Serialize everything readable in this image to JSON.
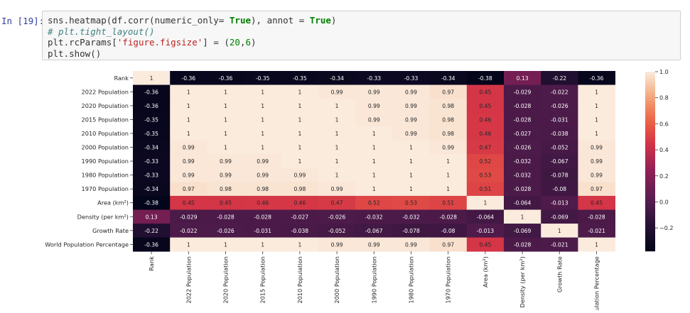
{
  "cell": {
    "prompt": "In [19]:",
    "code": [
      [
        [
          "sns.heatmap(df.corr(numeric_only",
          ""
        ],
        [
          "= ",
          ""
        ],
        [
          "True",
          "kw"
        ],
        [
          "), annot = ",
          ""
        ],
        [
          "True",
          "kw"
        ],
        [
          ")",
          ""
        ]
      ],
      [
        [
          "# plt.tight_layout()",
          "cm"
        ]
      ],
      [
        [
          "plt.rcParams[",
          ""
        ],
        [
          "'figure.figsize'",
          "str"
        ],
        [
          "] = (",
          ""
        ],
        [
          "20",
          "num"
        ],
        [
          ",",
          ""
        ],
        [
          "6",
          "num"
        ],
        [
          ")",
          ""
        ]
      ],
      [
        [
          "plt.show()",
          ""
        ]
      ]
    ]
  },
  "chart_data": {
    "type": "heatmap",
    "title": "",
    "row_labels": [
      "Rank",
      "2022 Population",
      "2020 Population",
      "2015 Population",
      "2010 Population",
      "2000 Population",
      "1990 Population",
      "1980 Population",
      "1970 Population",
      "Area (km²)",
      "Density (per km²)",
      "Growth Rate",
      "World Population Percentage"
    ],
    "col_labels": [
      "Rank",
      "2022 Population",
      "2020 Population",
      "2015 Population",
      "2010 Population",
      "2000 Population",
      "1990 Population",
      "1980 Population",
      "1970 Population",
      "Area (km²)",
      "Density (per km²)",
      "Growth Rate",
      "pulation Percentage"
    ],
    "values": [
      [
        1,
        -0.36,
        -0.36,
        -0.35,
        -0.35,
        -0.34,
        -0.33,
        -0.33,
        -0.34,
        -0.38,
        0.13,
        -0.22,
        -0.36
      ],
      [
        -0.36,
        1,
        1,
        1,
        1,
        0.99,
        0.99,
        0.99,
        0.97,
        0.45,
        -0.029,
        -0.022,
        1
      ],
      [
        -0.36,
        1,
        1,
        1,
        1,
        1,
        0.99,
        0.99,
        0.98,
        0.45,
        -0.028,
        -0.026,
        1
      ],
      [
        -0.35,
        1,
        1,
        1,
        1,
        1,
        0.99,
        0.99,
        0.98,
        0.46,
        -0.028,
        -0.031,
        1
      ],
      [
        -0.35,
        1,
        1,
        1,
        1,
        1,
        1,
        0.99,
        0.98,
        0.46,
        -0.027,
        -0.038,
        1
      ],
      [
        -0.34,
        0.99,
        1,
        1,
        1,
        1,
        1,
        1,
        0.99,
        0.47,
        -0.026,
        -0.052,
        0.99
      ],
      [
        -0.33,
        0.99,
        0.99,
        0.99,
        1,
        1,
        1,
        1,
        1,
        0.52,
        -0.032,
        -0.067,
        0.99
      ],
      [
        -0.33,
        0.99,
        0.99,
        0.99,
        0.99,
        1,
        1,
        1,
        1,
        0.53,
        -0.032,
        -0.078,
        0.99
      ],
      [
        -0.34,
        0.97,
        0.98,
        0.98,
        0.98,
        0.99,
        1,
        1,
        1,
        0.51,
        -0.028,
        -0.08,
        0.97
      ],
      [
        -0.38,
        0.45,
        0.45,
        0.46,
        0.46,
        0.47,
        0.52,
        0.53,
        0.51,
        1,
        -0.064,
        -0.013,
        0.45
      ],
      [
        0.13,
        -0.029,
        -0.028,
        -0.028,
        -0.027,
        -0.026,
        -0.032,
        -0.032,
        -0.028,
        -0.064,
        1,
        -0.069,
        -0.028
      ],
      [
        -0.22,
        -0.022,
        -0.026,
        -0.031,
        -0.038,
        -0.052,
        -0.067,
        -0.078,
        -0.08,
        -0.013,
        -0.069,
        1,
        -0.021
      ],
      [
        -0.36,
        1,
        1,
        1,
        1,
        0.99,
        0.99,
        0.99,
        0.97,
        0.45,
        -0.028,
        -0.021,
        1
      ]
    ],
    "colorbar": {
      "ticks": [
        1.0,
        0.8,
        0.6,
        0.4,
        0.2,
        0.0,
        -0.2
      ],
      "tick_labels": [
        "1.0",
        "0.8",
        "0.6",
        "0.4",
        "0.2",
        "0.0",
        "−0.2"
      ],
      "vmin": -0.38,
      "vmax": 1.0,
      "colormap": "rocket"
    }
  }
}
